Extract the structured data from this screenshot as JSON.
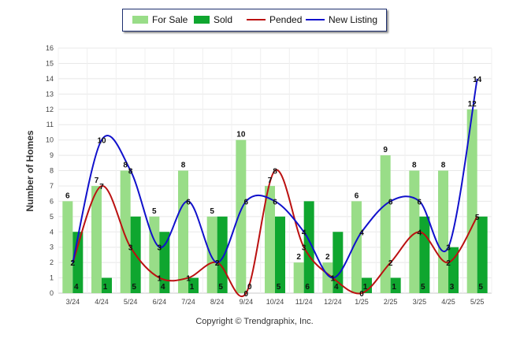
{
  "chart_data": {
    "type": "bar",
    "ylabel": "Number of Homes",
    "xlabel": "",
    "ylim": [
      0,
      16
    ],
    "yticks": [
      "0",
      "1",
      "2",
      "3",
      "4",
      "5",
      "6",
      "7",
      "8",
      "9",
      "10",
      "11",
      "12",
      "13",
      "14",
      "15",
      "16"
    ],
    "grid": true,
    "legend_position": "top-center",
    "categories": [
      "3/24",
      "4/24",
      "5/24",
      "6/24",
      "7/24",
      "8/24",
      "9/24",
      "10/24",
      "11/24",
      "12/24",
      "1/25",
      "2/25",
      "3/25",
      "4/25",
      "5/25"
    ],
    "series": [
      {
        "name": "For Sale",
        "kind": "bar",
        "color": "#99dd88",
        "values": [
          6,
          7,
          8,
          5,
          8,
          5,
          10,
          7,
          2,
          2,
          6,
          9,
          8,
          8,
          12
        ]
      },
      {
        "name": "Sold",
        "kind": "bar",
        "color": "#0fa62f",
        "values": [
          4,
          1,
          5,
          4,
          1,
          5,
          0,
          5,
          6,
          4,
          1,
          1,
          5,
          3,
          5
        ]
      },
      {
        "name": "Pended",
        "kind": "line",
        "color": "#bb1111",
        "values": [
          2,
          7,
          3,
          1,
          1,
          2,
          0,
          8,
          3,
          1,
          0,
          2,
          4,
          2,
          5
        ]
      },
      {
        "name": "New Listing",
        "kind": "line",
        "color": "#1111cc",
        "values": [
          2,
          10,
          8,
          3,
          6,
          2,
          6,
          6,
          4,
          1,
          4,
          6,
          6,
          3,
          14
        ]
      }
    ]
  },
  "footer": {
    "copyright": "Copyright © Trendgraphix, Inc."
  }
}
